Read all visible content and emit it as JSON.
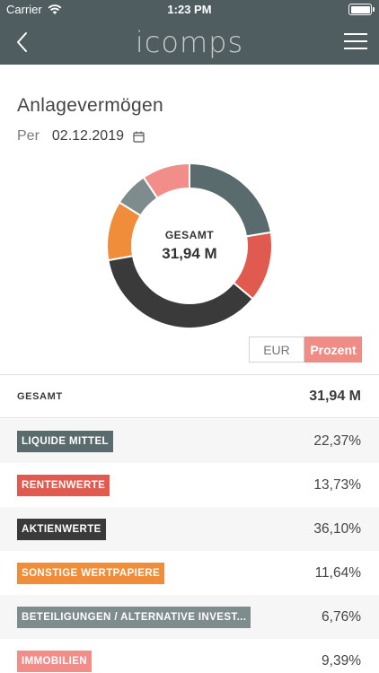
{
  "status_bar": {
    "carrier": "Carrier",
    "time": "1:23 PM"
  },
  "header": {
    "logo_text": "icomps",
    "back_icon": "chevron-left-icon",
    "menu_icon": "hamburger-menu-icon"
  },
  "page": {
    "title": "Anlagevermögen",
    "per_label": "Per",
    "date": "02.12.2019"
  },
  "donut": {
    "center_label": "GESAMT",
    "center_value": "31,94 M"
  },
  "toggle": {
    "eur_label": "EUR",
    "percent_label": "Prozent",
    "selected": "Prozent"
  },
  "total": {
    "label": "GESAMT",
    "value": "31,94 M"
  },
  "colors": {
    "liquide": "#5a6b6e",
    "renten": "#e05a4f",
    "aktien": "#3a3a3a",
    "sonstige": "#ef8d3b",
    "beteiligungen": "#7e8c8e",
    "immobilien": "#f28e8a"
  },
  "rows": [
    {
      "label": "LIQUIDE MITTEL",
      "value": "22,37%",
      "percent": 22.37,
      "color": "#5a6b6e"
    },
    {
      "label": "RENTENWERTE",
      "value": "13,73%",
      "percent": 13.73,
      "color": "#e05a4f"
    },
    {
      "label": "AKTIENWERTE",
      "value": "36,10%",
      "percent": 36.1,
      "color": "#3a3a3a"
    },
    {
      "label": "SONSTIGE WERTPAPIERE",
      "value": "11,64%",
      "percent": 11.64,
      "color": "#ef8d3b"
    },
    {
      "label": "BETEILIGUNGEN / ALTERNATIVE INVEST...",
      "value": "6,76%",
      "percent": 6.76,
      "color": "#7e8c8e"
    },
    {
      "label": "IMMOBILIEN",
      "value": "9,39%",
      "percent": 9.39,
      "color": "#f28e8a"
    }
  ]
}
